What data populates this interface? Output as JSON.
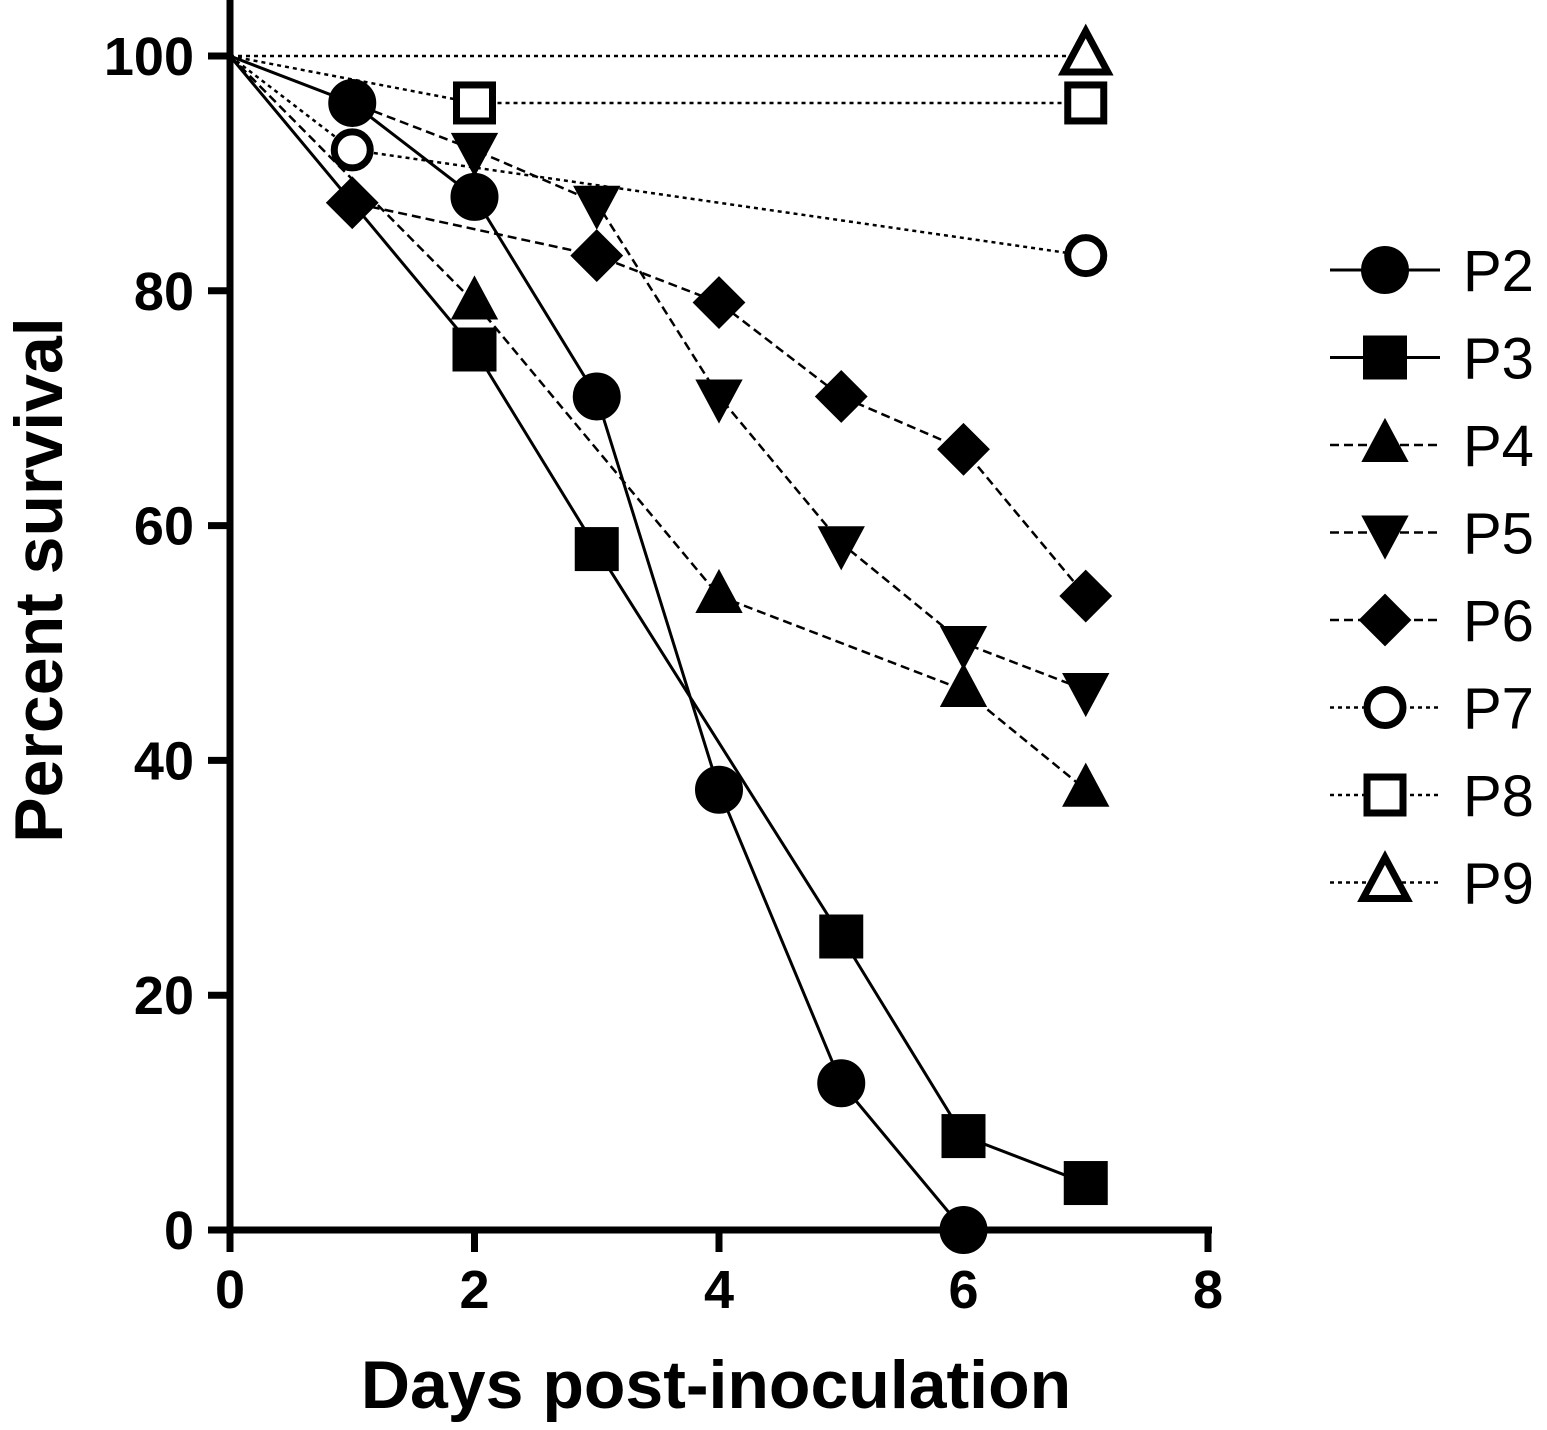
{
  "chart_data": {
    "type": "line",
    "title": "",
    "xlabel": "Days post-inoculation",
    "ylabel": "Percent survival",
    "xlim": [
      0,
      8
    ],
    "ylim": [
      0,
      100
    ],
    "xticks": [
      "0",
      "2",
      "4",
      "6",
      "8"
    ],
    "yticks": [
      "0",
      "20",
      "40",
      "60",
      "80",
      "100"
    ],
    "grid": false,
    "legend_position": "right",
    "series": [
      {
        "name": "P2",
        "marker": "circle",
        "filled": true,
        "line": "solid",
        "x": [
          0,
          1,
          2,
          3,
          4,
          5,
          6
        ],
        "y": [
          100,
          96,
          88,
          71,
          37.5,
          12.5,
          0
        ]
      },
      {
        "name": "P3",
        "marker": "square",
        "filled": true,
        "line": "solid",
        "x": [
          0,
          2,
          3,
          5,
          6,
          7
        ],
        "y": [
          100,
          75,
          58,
          25,
          8,
          4
        ]
      },
      {
        "name": "P4",
        "marker": "triangle-up",
        "filled": true,
        "line": "dashed",
        "x": [
          0,
          2,
          4,
          6,
          7
        ],
        "y": [
          100,
          79,
          54,
          46,
          37.5
        ]
      },
      {
        "name": "P5",
        "marker": "triangle-down",
        "filled": true,
        "line": "dashed",
        "x": [
          0,
          2,
          3,
          4,
          5,
          6,
          7
        ],
        "y": [
          100,
          92,
          87.5,
          71,
          58.5,
          50,
          46
        ]
      },
      {
        "name": "P6",
        "marker": "diamond",
        "filled": true,
        "line": "dashed",
        "x": [
          0,
          1,
          3,
          4,
          5,
          6,
          7
        ],
        "y": [
          100,
          87.5,
          83,
          79,
          71,
          66.5,
          54
        ]
      },
      {
        "name": "P7",
        "marker": "circle",
        "filled": false,
        "line": "dotted",
        "x": [
          0,
          1,
          7
        ],
        "y": [
          100,
          92,
          83
        ]
      },
      {
        "name": "P8",
        "marker": "square",
        "filled": false,
        "line": "dotted",
        "x": [
          0,
          2,
          7
        ],
        "y": [
          100,
          96,
          96
        ]
      },
      {
        "name": "P9",
        "marker": "triangle-up",
        "filled": false,
        "line": "dotted",
        "x": [
          0,
          7
        ],
        "y": [
          100,
          100
        ]
      }
    ]
  }
}
